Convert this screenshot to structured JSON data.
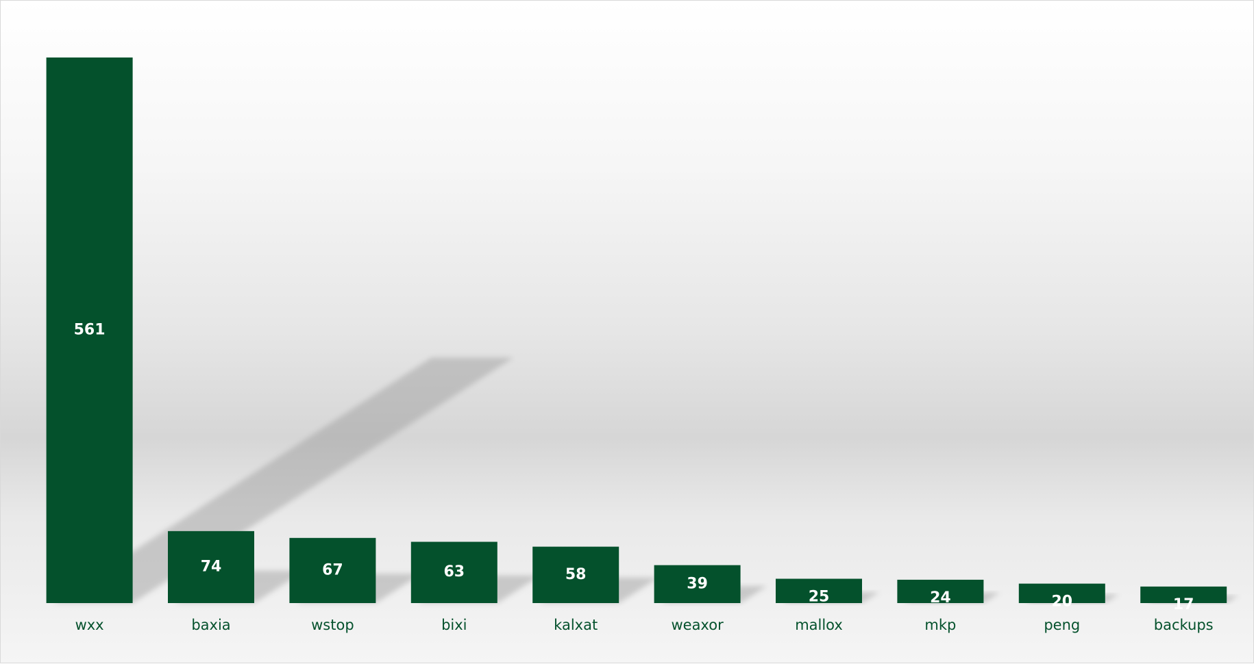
{
  "chart_data": {
    "type": "bar",
    "categories": [
      "wxx",
      "baxia",
      "wstop",
      "bixi",
      "kalxat",
      "weaxor",
      "mallox",
      "mkp",
      "peng",
      "backups"
    ],
    "values": [
      561,
      74,
      67,
      63,
      58,
      39,
      25,
      24,
      20,
      17
    ],
    "title": "",
    "xlabel": "",
    "ylabel": "",
    "ylim": [
      0,
      561
    ],
    "grid": false,
    "data_labels": "inside",
    "bar_color": "#04512c",
    "label_color": "#ffffff",
    "category_color": "#04512c"
  }
}
